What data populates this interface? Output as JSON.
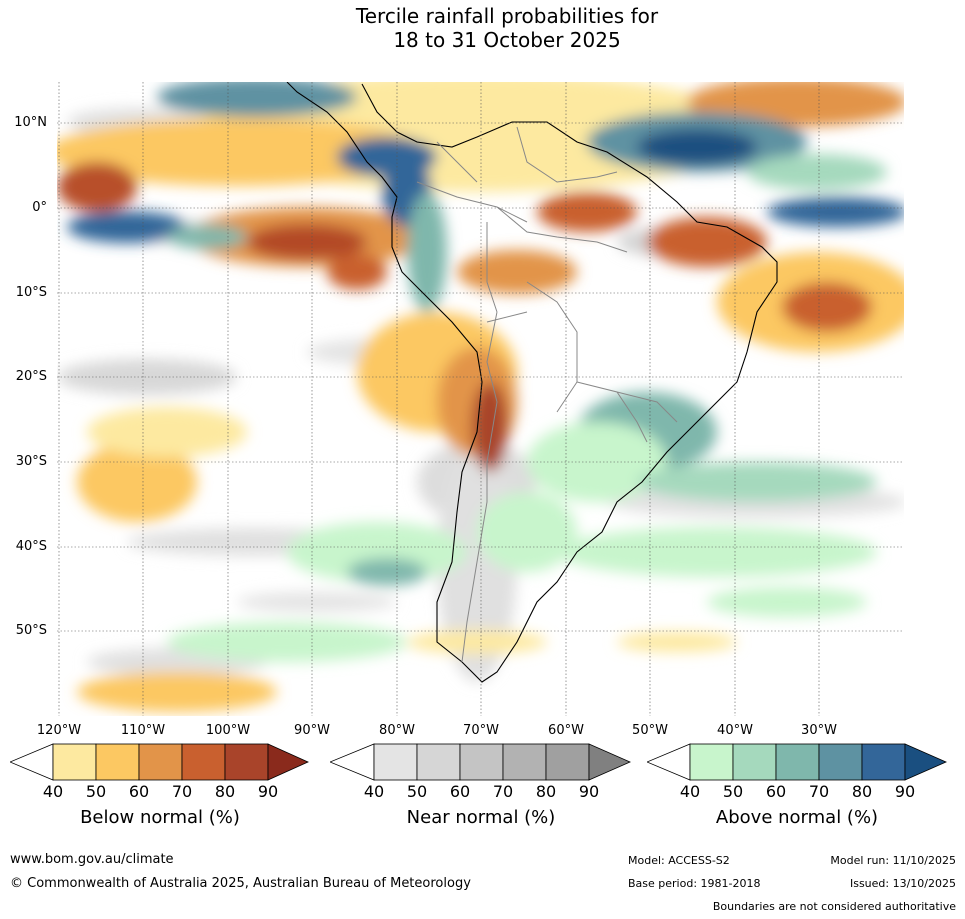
{
  "title_line1": "Tercile rainfall probabilities for",
  "title_line2": "18 to 31 October 2025",
  "lat_labels": [
    "10°N",
    "0°",
    "10°S",
    "20°S",
    "30°S",
    "40°S",
    "50°S"
  ],
  "lon_labels": [
    "120°W",
    "110°W",
    "100°W",
    "90°W",
    "80°W",
    "70°W",
    "60°W",
    "50°W",
    "40°W",
    "30°W"
  ],
  "colorbars": [
    {
      "title": "Below normal (%)",
      "ticks": [
        "40",
        "50",
        "60",
        "70",
        "80",
        "90"
      ],
      "colors": [
        "#fde9a0",
        "#fcc862",
        "#e29449",
        "#c9602f",
        "#a9442a",
        "#8a2a1c"
      ]
    },
    {
      "title": "Near normal (%)",
      "ticks": [
        "40",
        "50",
        "60",
        "70",
        "80",
        "90"
      ],
      "colors": [
        "#e4e4e4",
        "#d6d6d6",
        "#c4c4c4",
        "#b2b2b2",
        "#a0a0a0",
        "#808080"
      ]
    },
    {
      "title": "Above normal (%)",
      "ticks": [
        "40",
        "50",
        "60",
        "70",
        "80",
        "90"
      ],
      "colors": [
        "#c8f5cc",
        "#a5d9bd",
        "#7fb7ac",
        "#5e92a2",
        "#336699",
        "#1a4f80"
      ]
    }
  ],
  "footer": {
    "url": "www.bom.gov.au/climate",
    "copyright": "© Commonwealth of Australia 2025, Australian Bureau of Meteorology",
    "model": "Model: ACCESS-S2",
    "base_period": "Base period: 1981-2018",
    "model_run": "Model run: 11/10/2025",
    "issued": "Issued: 13/10/2025",
    "boundaries": "Boundaries are not considered authoritative"
  }
}
